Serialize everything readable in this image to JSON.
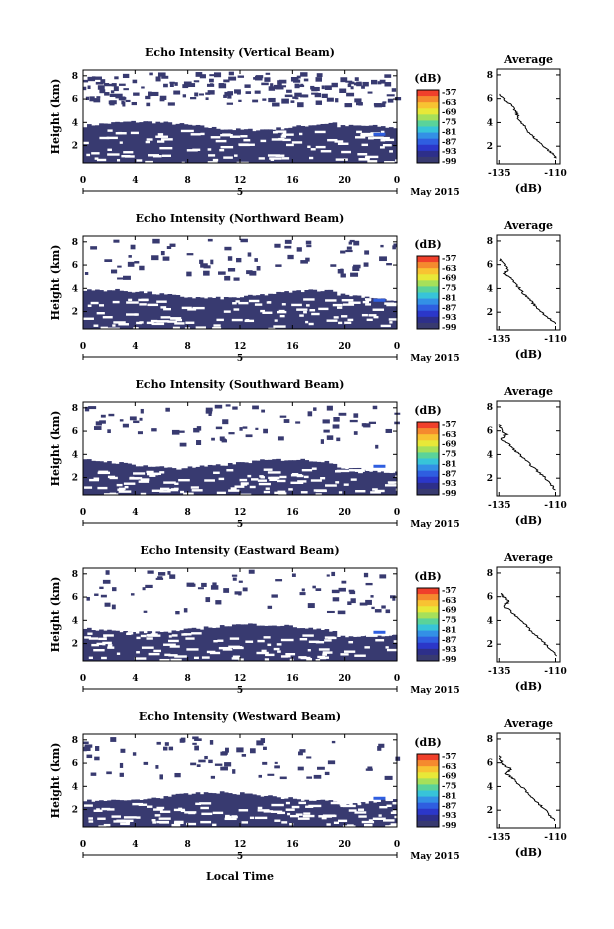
{
  "figure": {
    "xlabel": "Local Time",
    "date_label": "May 2015",
    "x_ticks": [
      "0",
      "4",
      "8",
      "12",
      "16",
      "20",
      "0"
    ],
    "x_day_marker": "5",
    "y_ticks": [
      "2",
      "4",
      "6",
      "8"
    ],
    "ylabel": "Height (km)",
    "colorbar_unit": "(dB)",
    "colorbar_ticks": [
      "-57",
      "-63",
      "-69",
      "-75",
      "-81",
      "-87",
      "-93",
      "-99"
    ],
    "colorbar_colors": [
      "#f0402b",
      "#f58a2e",
      "#f8c332",
      "#e8e838",
      "#a6e05a",
      "#5ad39a",
      "#37c4d9",
      "#3390e6",
      "#2f5ee0",
      "#2b37c9",
      "#2d2f8a",
      "#383a70"
    ],
    "profile_title": "Average",
    "profile_xlabel": "(dB)",
    "profile_x_ticks": [
      "-135",
      "-110"
    ],
    "fill_color": "#383a70",
    "accent_color": "#2f5ee0"
  },
  "chart_data": [
    {
      "type": "heatmap",
      "title": "Echo Intensity (Vertical Beam)",
      "xlim": [
        0,
        24
      ],
      "ylim": [
        0.5,
        8.5
      ],
      "dense_top_km": 3.7,
      "profile": {
        "type": "line",
        "x": [
          -134.5,
          -133,
          -130,
          -128,
          -127,
          -126,
          -124,
          -122,
          -120,
          -117,
          -114,
          -111,
          -109.5
        ],
        "y": [
          6.4,
          6.0,
          5.5,
          5.0,
          4.6,
          4.1,
          3.7,
          3.2,
          2.8,
          2.3,
          1.8,
          1.3,
          1.0
        ],
        "xlim": [
          -136,
          -108
        ],
        "ylim": [
          0.5,
          8.5
        ]
      }
    },
    {
      "type": "heatmap",
      "title": "Echo Intensity (Northward Beam)",
      "xlim": [
        0,
        24
      ],
      "ylim": [
        0.5,
        8.5
      ],
      "dense_top_km": 3.5,
      "profile": {
        "type": "line",
        "x": [
          -134.5,
          -133,
          -131,
          -133,
          -130,
          -128,
          -126,
          -124,
          -121,
          -119,
          -116,
          -113,
          -110
        ],
        "y": [
          6.5,
          6.1,
          5.6,
          5.2,
          4.9,
          4.4,
          4.0,
          3.5,
          3.0,
          2.5,
          2.0,
          1.5,
          1.0
        ],
        "xlim": [
          -136,
          -108
        ],
        "ylim": [
          0.5,
          8.5
        ]
      }
    },
    {
      "type": "heatmap",
      "title": "Echo Intensity (Southward Beam)",
      "xlim": [
        0,
        24
      ],
      "ylim": [
        0.5,
        8.5
      ],
      "dense_top_km": 3.2,
      "profile": {
        "type": "line",
        "x": [
          -135,
          -134,
          -132,
          -134,
          -131,
          -129,
          -126,
          -124,
          -121,
          -118,
          -115,
          -112,
          -110
        ],
        "y": [
          6.5,
          6.1,
          5.7,
          5.3,
          4.9,
          4.5,
          4.0,
          3.6,
          3.1,
          2.6,
          2.1,
          1.5,
          1.0
        ],
        "xlim": [
          -136,
          -108
        ],
        "ylim": [
          0.5,
          8.5
        ]
      }
    },
    {
      "type": "heatmap",
      "title": "Echo Intensity (Eastward Beam)",
      "xlim": [
        0,
        24
      ],
      "ylim": [
        0.5,
        8.5
      ],
      "dense_top_km": 3.3,
      "profile": {
        "type": "line",
        "x": [
          -134.5,
          -133,
          -131,
          -133,
          -130,
          -128,
          -125,
          -123,
          -121,
          -118,
          -115,
          -112,
          -109.5
        ],
        "y": [
          6.3,
          6.0,
          5.6,
          5.2,
          4.8,
          4.4,
          4.0,
          3.5,
          3.1,
          2.6,
          2.1,
          1.5,
          1.0
        ],
        "xlim": [
          -136,
          -108
        ],
        "ylim": [
          0.5,
          8.5
        ]
      }
    },
    {
      "type": "heatmap",
      "title": "Echo Intensity (Westward Beam)",
      "xlim": [
        0,
        24
      ],
      "ylim": [
        0.5,
        8.5
      ],
      "dense_top_km": 3.1,
      "profile": {
        "type": "line",
        "x": [
          -135,
          -134,
          -133,
          -130,
          -132,
          -129,
          -127,
          -124,
          -122,
          -119,
          -116,
          -113,
          -110.5
        ],
        "y": [
          6.6,
          6.2,
          5.8,
          5.5,
          5.1,
          4.7,
          4.2,
          3.8,
          3.3,
          2.8,
          2.3,
          1.7,
          1.1
        ],
        "xlim": [
          -136,
          -108
        ],
        "ylim": [
          0.5,
          8.5
        ]
      }
    }
  ]
}
